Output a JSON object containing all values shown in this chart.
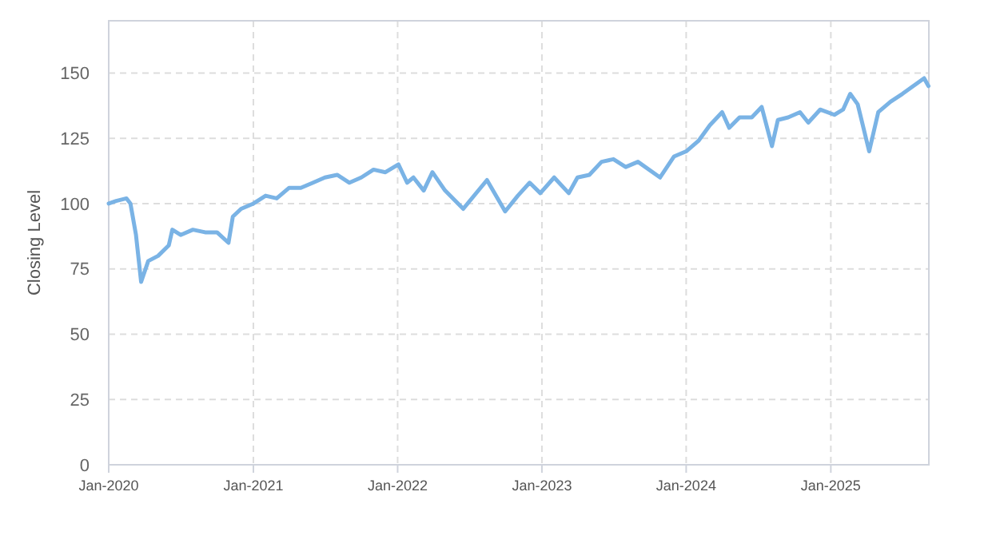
{
  "chart_data": {
    "type": "line",
    "ylabel": "Closing Level",
    "xlim": [
      "2020-01-01",
      "2025-09-06"
    ],
    "ylim": [
      0,
      170
    ],
    "yticks": [
      0,
      25,
      50,
      75,
      100,
      125,
      150
    ],
    "xticks": [
      {
        "value": "2020-01-01",
        "label": "Jan-2020"
      },
      {
        "value": "2021-01-01",
        "label": "Jan-2021"
      },
      {
        "value": "2022-01-01",
        "label": "Jan-2022"
      },
      {
        "value": "2023-01-01",
        "label": "Jan-2023"
      },
      {
        "value": "2024-01-01",
        "label": "Jan-2024"
      },
      {
        "value": "2025-01-01",
        "label": "Jan-2025"
      }
    ],
    "grid": true,
    "marker": "none",
    "line_style": "solid",
    "series": [
      {
        "color": "#7ab3e5",
        "x": [
          "2020-01-01",
          "2020-01-20",
          "2020-02-15",
          "2020-02-25",
          "2020-03-10",
          "2020-03-23",
          "2020-04-10",
          "2020-05-05",
          "2020-06-01",
          "2020-06-10",
          "2020-07-01",
          "2020-08-01",
          "2020-09-01",
          "2020-10-01",
          "2020-10-30",
          "2020-11-10",
          "2020-12-01",
          "2021-01-01",
          "2021-02-01",
          "2021-03-01",
          "2021-04-01",
          "2021-05-01",
          "2021-06-01",
          "2021-07-01",
          "2021-08-01",
          "2021-09-01",
          "2021-10-01",
          "2021-11-01",
          "2021-12-01",
          "2022-01-03",
          "2022-01-25",
          "2022-02-10",
          "2022-03-08",
          "2022-03-30",
          "2022-05-01",
          "2022-06-16",
          "2022-08-15",
          "2022-09-30",
          "2022-11-01",
          "2022-12-01",
          "2022-12-28",
          "2023-02-01",
          "2023-03-10",
          "2023-04-01",
          "2023-05-01",
          "2023-06-01",
          "2023-07-01",
          "2023-08-01",
          "2023-09-01",
          "2023-10-27",
          "2023-12-01",
          "2024-01-01",
          "2024-02-01",
          "2024-03-01",
          "2024-04-01",
          "2024-04-19",
          "2024-05-15",
          "2024-06-15",
          "2024-07-10",
          "2024-08-05",
          "2024-08-20",
          "2024-09-15",
          "2024-10-15",
          "2024-11-05",
          "2024-12-05",
          "2025-01-10",
          "2025-02-01",
          "2025-02-19",
          "2025-03-10",
          "2025-04-08",
          "2025-05-01",
          "2025-06-01",
          "2025-07-01",
          "2025-08-25",
          "2025-09-05"
        ],
        "values": [
          100,
          101,
          102,
          100,
          88,
          70,
          78,
          80,
          84,
          90,
          88,
          90,
          89,
          89,
          85,
          95,
          98,
          100,
          103,
          102,
          106,
          106,
          108,
          110,
          111,
          108,
          110,
          113,
          112,
          115,
          108,
          110,
          105,
          112,
          105,
          98,
          109,
          97,
          103,
          108,
          104,
          110,
          104,
          110,
          111,
          116,
          117,
          114,
          116,
          110,
          118,
          120,
          124,
          130,
          135,
          129,
          133,
          133,
          137,
          122,
          132,
          133,
          135,
          131,
          136,
          134,
          136,
          142,
          138,
          120,
          135,
          139,
          142,
          148,
          145
        ]
      }
    ]
  }
}
